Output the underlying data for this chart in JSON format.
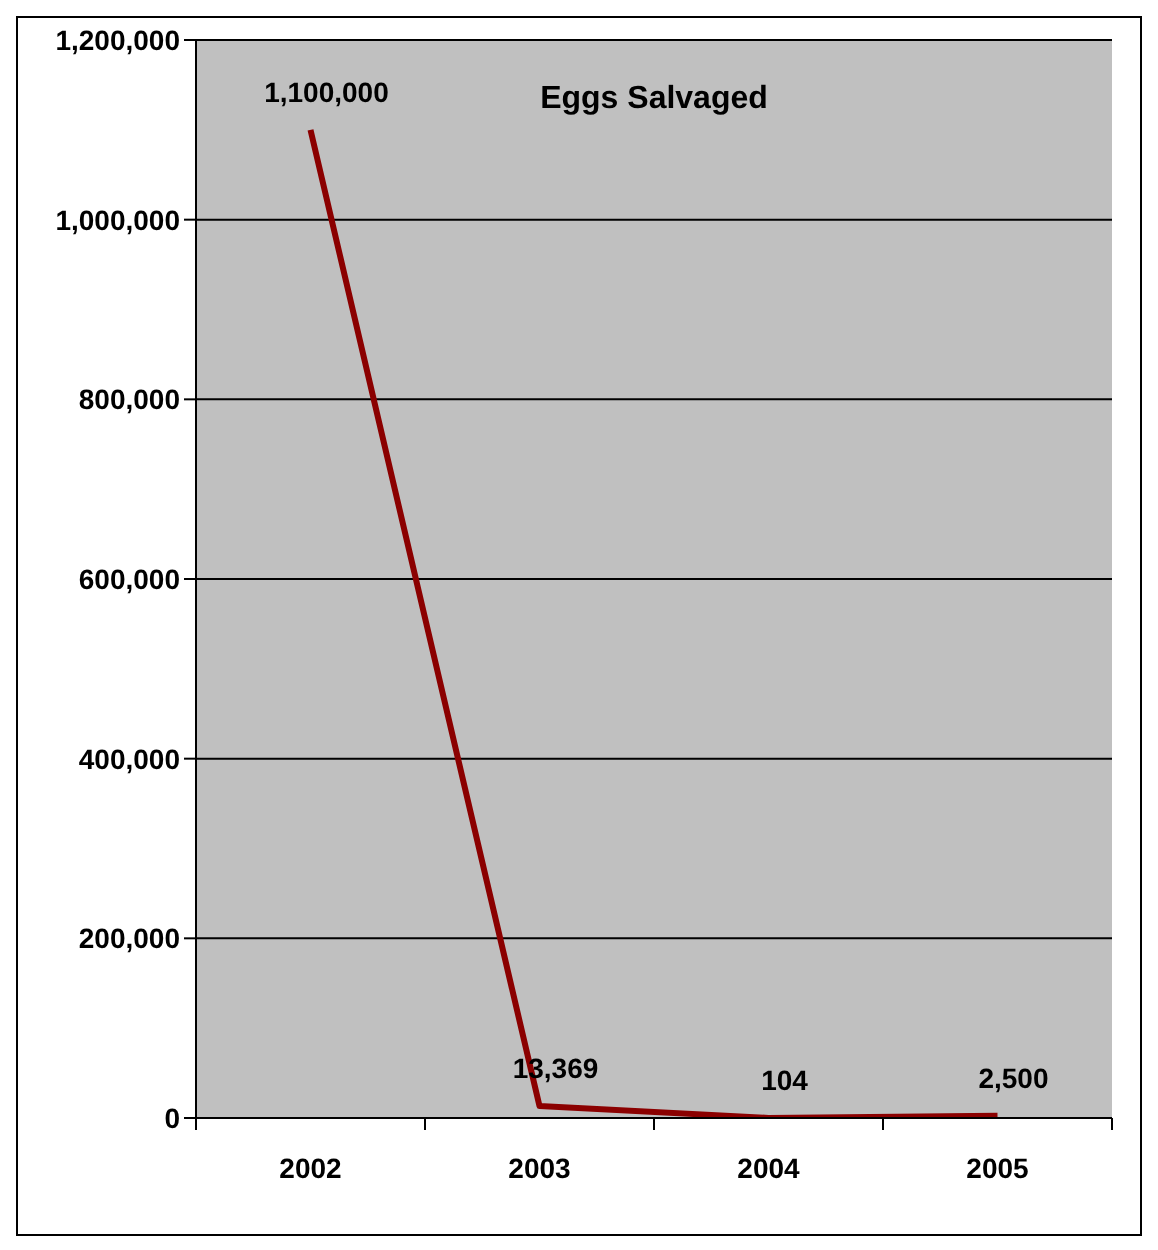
{
  "chart_data": {
    "type": "line",
    "title": "Eggs Salvaged",
    "categories": [
      "2002",
      "2003",
      "2004",
      "2005"
    ],
    "series": [
      {
        "color": "#8b0000",
        "values": [
          1100000,
          13369,
          104,
          2500
        ],
        "value_labels": [
          "1,100,000",
          "13,369",
          "104",
          "2,500"
        ]
      }
    ],
    "ylim": [
      0,
      1200000
    ],
    "yticks": [
      {
        "value": 0,
        "label": "0"
      },
      {
        "value": 200000,
        "label": "200,000"
      },
      {
        "value": 400000,
        "label": "400,000"
      },
      {
        "value": 600000,
        "label": "600,000"
      },
      {
        "value": 800000,
        "label": "800,000"
      },
      {
        "value": 1000000,
        "label": "1,000,000"
      },
      {
        "value": 1200000,
        "label": "1,200,000"
      }
    ],
    "grid": "y",
    "marker": "none"
  }
}
